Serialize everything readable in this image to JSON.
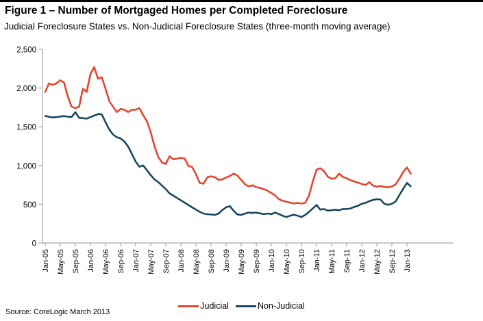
{
  "header": {
    "title": "Figure 1 – Number of Mortgaged Homes per Completed Foreclosure",
    "subtitle": "Judicial Foreclosure States vs. Non-Judicial Foreclosure States (three-month moving average)"
  },
  "footer": {
    "source": "Source: CoreLogic March 2013"
  },
  "legend": {
    "items": [
      {
        "label": "Judicial",
        "color": "#e8432d"
      },
      {
        "label": "Non-Judicial",
        "color": "#17465f"
      }
    ]
  },
  "chart_data": {
    "type": "line",
    "title": "Figure 1 – Number of Mortgaged Homes per Completed Foreclosure",
    "subtitle": "Judicial Foreclosure States vs. Non-Judicial Foreclosure States (three-month moving average)",
    "xlabel": "",
    "ylabel": "",
    "ylim": [
      0,
      2500
    ],
    "grid": false,
    "legend_position": "bottom",
    "x_unit": "month",
    "x_start": "Jan-05",
    "x_end": "Feb-13",
    "x_ticks": [
      "Jan-05",
      "May-05",
      "Sep-05",
      "Jan-06",
      "May-06",
      "Sep-06",
      "Jan-07",
      "May-07",
      "Sep-07",
      "Jan-08",
      "May-08",
      "Sep-08",
      "Jan-09",
      "May-09",
      "Sep-09",
      "Jan-10",
      "May-10",
      "Sep-10",
      "Jan-11",
      "May-11",
      "Sep-11",
      "Jan-12",
      "May-12",
      "Sep-12",
      "Jan-13"
    ],
    "y_ticks": [
      "0",
      "500",
      "1,000",
      "1,500",
      "2,000",
      "2,500"
    ],
    "series": [
      {
        "name": "Judicial",
        "color": "#e8432d",
        "values": [
          1950,
          2060,
          2040,
          2060,
          2100,
          2070,
          1890,
          1760,
          1740,
          1760,
          1990,
          1950,
          2180,
          2270,
          2120,
          2140,
          1990,
          1830,
          1760,
          1690,
          1730,
          1720,
          1690,
          1720,
          1720,
          1740,
          1650,
          1570,
          1430,
          1250,
          1110,
          1040,
          1020,
          1120,
          1080,
          1090,
          1100,
          1090,
          995,
          980,
          890,
          775,
          765,
          845,
          860,
          850,
          815,
          820,
          845,
          865,
          895,
          870,
          815,
          760,
          730,
          745,
          720,
          710,
          695,
          675,
          645,
          615,
          565,
          545,
          533,
          520,
          510,
          518,
          508,
          518,
          610,
          790,
          945,
          965,
          925,
          855,
          828,
          836,
          895,
          852,
          835,
          810,
          795,
          778,
          762,
          748,
          785,
          740,
          728,
          736,
          722,
          718,
          730,
          758,
          830,
          916,
          975,
          895
        ]
      },
      {
        "name": "Non-Judicial",
        "color": "#17465f",
        "values": [
          1640,
          1628,
          1620,
          1625,
          1632,
          1638,
          1630,
          1626,
          1688,
          1615,
          1610,
          1605,
          1625,
          1645,
          1663,
          1660,
          1560,
          1465,
          1400,
          1365,
          1350,
          1310,
          1245,
          1150,
          1050,
          985,
          1000,
          940,
          875,
          820,
          785,
          740,
          695,
          640,
          610,
          580,
          550,
          520,
          490,
          460,
          430,
          402,
          380,
          372,
          368,
          362,
          380,
          425,
          460,
          475,
          415,
          368,
          362,
          380,
          392,
          388,
          392,
          382,
          372,
          380,
          372,
          392,
          374,
          352,
          335,
          352,
          365,
          352,
          335,
          362,
          400,
          445,
          490,
          430,
          438,
          418,
          422,
          430,
          422,
          438,
          438,
          445,
          465,
          480,
          505,
          518,
          540,
          556,
          565,
          560,
          505,
          492,
          505,
          535,
          618,
          700,
          775,
          732
        ]
      }
    ]
  }
}
